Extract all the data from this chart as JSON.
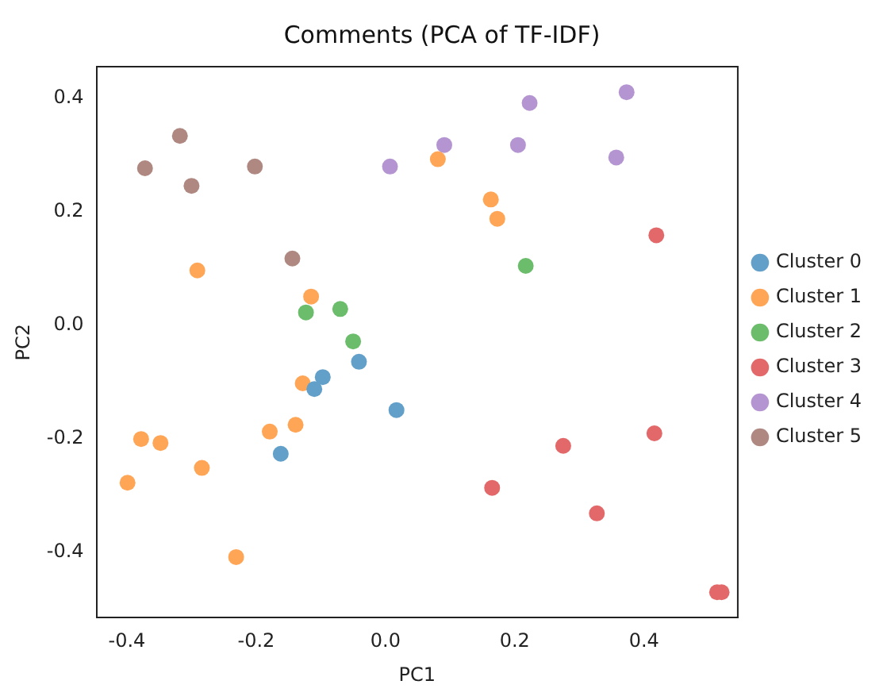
{
  "chart_data": {
    "type": "scatter",
    "title": "Comments (PCA of TF-IDF)",
    "xlabel": "PC1",
    "ylabel": "PC2",
    "xlim": [
      -0.447,
      0.545
    ],
    "ylim": [
      -0.516,
      0.455
    ],
    "xticks": [
      -0.4,
      -0.2,
      {
        "value": 0,
        "label": "0.0"
      },
      0.2,
      0.4
    ],
    "yticks": [
      -0.4,
      -0.2,
      {
        "value": 0,
        "label": "0.0"
      },
      0.2,
      0.4
    ],
    "grid": false,
    "legend": "right",
    "marker": "circle",
    "series": [
      {
        "name": "Cluster 0",
        "color": "#62a0ca",
        "x": [
          -0.041,
          -0.097,
          -0.11,
          0.017,
          -0.162
        ],
        "values": [
          -0.065,
          -0.092,
          -0.113,
          -0.15,
          -0.227
        ]
      },
      {
        "name": "Cluster 1",
        "color": "#ffa556",
        "x": [
          -0.291,
          -0.115,
          0.081,
          0.163,
          0.173,
          -0.128,
          -0.139,
          -0.179,
          -0.378,
          -0.348,
          -0.284,
          -0.399,
          -0.231
        ],
        "values": [
          0.096,
          0.05,
          0.292,
          0.221,
          0.187,
          -0.103,
          -0.176,
          -0.188,
          -0.201,
          -0.208,
          -0.252,
          -0.278,
          -0.409
        ]
      },
      {
        "name": "Cluster 2",
        "color": "#6bbd6b",
        "x": [
          -0.123,
          -0.07,
          0.217,
          -0.05
        ],
        "values": [
          0.022,
          0.028,
          0.104,
          -0.029
        ]
      },
      {
        "name": "Cluster 3",
        "color": "#e26869",
        "x": [
          0.419,
          0.416,
          0.165,
          0.275,
          0.327,
          0.513,
          0.52
        ],
        "values": [
          0.158,
          -0.191,
          -0.287,
          -0.213,
          -0.332,
          -0.471,
          -0.471
        ]
      },
      {
        "name": "Cluster 4",
        "color": "#b495d1",
        "x": [
          0.007,
          0.223,
          0.373,
          0.091,
          0.205,
          0.357
        ],
        "values": [
          0.279,
          0.391,
          0.41,
          0.317,
          0.317,
          0.295
        ]
      },
      {
        "name": "Cluster 5",
        "color": "#af8981",
        "x": [
          -0.372,
          -0.318,
          -0.3,
          -0.202,
          -0.144
        ],
        "values": [
          0.276,
          0.333,
          0.245,
          0.279,
          0.117
        ]
      }
    ]
  }
}
